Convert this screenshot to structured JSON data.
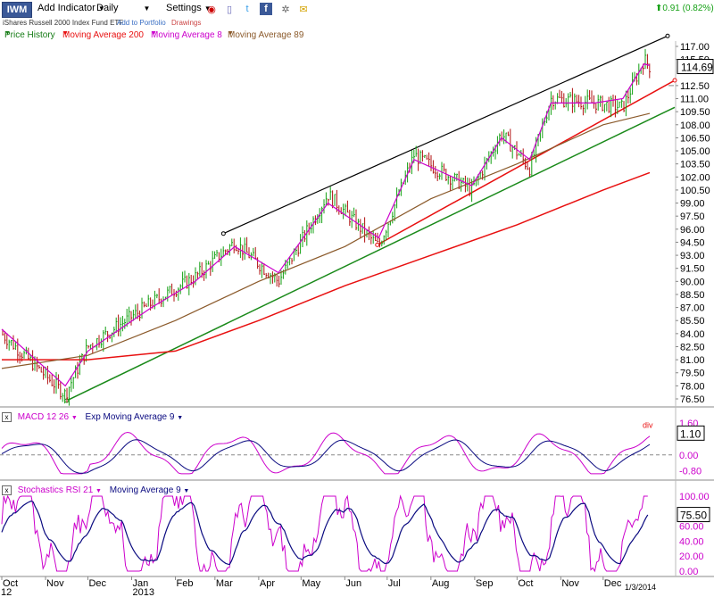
{
  "toolbar": {
    "ticker": "IWM",
    "add_indicator": "Add Indicator",
    "period": "Daily",
    "settings": "Settings",
    "change_text": "0.91 (0.82%)",
    "icons": [
      "history-icon",
      "document-icon",
      "twitter-icon",
      "facebook-icon",
      "gear-icon",
      "note-icon"
    ]
  },
  "subheader": {
    "name": "iShares Russell 2000 Index Fund ETF",
    "add_portfolio": "Add to Portfolio",
    "drawings": "Drawings"
  },
  "legend": {
    "price_history": "Price History",
    "ma200": "Moving Average 200",
    "ma8": "Moving Average 8",
    "ma89": "Moving Average 89"
  },
  "colors": {
    "price_up": "#14a014",
    "price_down": "#b01010",
    "ma200": "#e81010",
    "ma8": "#cc00cc",
    "ma89": "#8b5a2b",
    "trend_upper": "#000000",
    "trend_red": "#e81010",
    "trend_green": "#1a8a1a",
    "macd": "#cc00cc",
    "macd_signal": "#0a0a80",
    "stoch_rsi": "#cc00cc",
    "stoch_ma": "#0a0a80"
  },
  "price_panel": {
    "last_price_label": "114.69",
    "y_ticks": [
      "117.00",
      "115.50",
      "112.50",
      "111.00",
      "109.50",
      "108.00",
      "106.50",
      "105.00",
      "103.50",
      "102.00",
      "100.50",
      "99.00",
      "97.50",
      "96.00",
      "94.50",
      "93.00",
      "91.50",
      "90.00",
      "88.50",
      "87.00",
      "85.50",
      "84.00",
      "82.50",
      "81.00",
      "79.50",
      "78.00",
      "76.50"
    ]
  },
  "macd_panel": {
    "title": "MACD 12 26",
    "signal": "Exp Moving Average 9",
    "annotation": "div",
    "y_ticks": [
      "1.60",
      "0.00",
      "-0.80"
    ],
    "last_value": "1.10"
  },
  "stoch_panel": {
    "title": "Stochastics RSI 21",
    "signal": "Moving Average 9",
    "y_ticks": [
      "100.00",
      "80.00",
      "60.00",
      "40.00",
      "20.00",
      "0.00"
    ],
    "last_value": "75.50"
  },
  "x_axis": {
    "labels": [
      "Oct",
      "Nov",
      "Dec",
      "Jan",
      "Feb",
      "Mar",
      "Apr",
      "May",
      "Jun",
      "Jul",
      "Aug",
      "Sep",
      "Oct",
      "Nov",
      "Dec"
    ],
    "year_left": "12",
    "year_2013": "2013",
    "end_date": "1/3/2014"
  },
  "chart_data": {
    "type": "line",
    "title": "iShares Russell 2000 Index Fund ETF",
    "x_range": [
      "2012-10",
      "2014-01-03"
    ],
    "ylim": [
      76.5,
      117
    ],
    "series": [
      {
        "name": "Price History",
        "x": [
          "2012-10",
          "2012-11-15",
          "2012-12",
          "2013-01-15",
          "2013-02-15",
          "2013-03-15",
          "2013-04-15",
          "2013-05-20",
          "2013-06-25",
          "2013-07-20",
          "2013-08-30",
          "2013-09-20",
          "2013-10-10",
          "2013-10-25",
          "2013-11-25",
          "2013-12-15",
          "2013-12-30",
          "2014-01-03"
        ],
        "values": [
          84.0,
          77.0,
          82.5,
          87.5,
          90.5,
          94.5,
          90.0,
          100.0,
          94.0,
          104.5,
          100.5,
          107.0,
          103.0,
          111.0,
          110.5,
          110.0,
          115.5,
          114.69
        ]
      },
      {
        "name": "Moving Average 8",
        "x": [
          "2012-10",
          "2012-11-15",
          "2012-12",
          "2013-01-15",
          "2013-02-15",
          "2013-03-15",
          "2013-04-15",
          "2013-05-20",
          "2013-06-25",
          "2013-07-20",
          "2013-08-30",
          "2013-09-20",
          "2013-10-10",
          "2013-10-25",
          "2013-11-25",
          "2013-12-15",
          "2013-12-30",
          "2014-01-03"
        ],
        "values": [
          84.5,
          78.0,
          82.0,
          87.0,
          90.0,
          94.0,
          91.0,
          99.0,
          95.0,
          104.0,
          101.0,
          106.5,
          104.0,
          110.5,
          110.5,
          111.0,
          115.0,
          114.8
        ]
      },
      {
        "name": "Moving Average 89",
        "x": [
          "2012-10",
          "2012-12",
          "2013-02",
          "2013-04",
          "2013-06",
          "2013-08",
          "2013-10",
          "2013-12",
          "2014-01-03"
        ],
        "values": [
          80.0,
          81.5,
          85.5,
          90.0,
          94.0,
          99.5,
          103.5,
          108.0,
          109.3
        ]
      },
      {
        "name": "Moving Average 200",
        "x": [
          "2012-10",
          "2012-12",
          "2013-02",
          "2013-04",
          "2013-06",
          "2013-08",
          "2013-10",
          "2013-12",
          "2014-01-03"
        ],
        "values": [
          81.0,
          81.0,
          82.0,
          85.5,
          89.5,
          93.0,
          96.5,
          100.5,
          102.5
        ]
      }
    ],
    "macd": {
      "ylim": [
        -1.0,
        1.7
      ],
      "last": 1.1
    },
    "stochastics_rsi": {
      "ylim": [
        0,
        100
      ],
      "last": 75.5
    },
    "grid": false,
    "legend": "top-left"
  }
}
